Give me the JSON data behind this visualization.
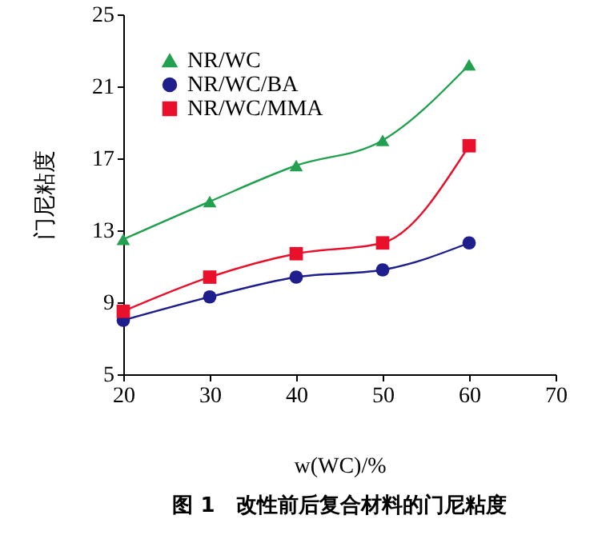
{
  "chart_data": {
    "type": "line",
    "title": "图 1　改性前后复合材料的门尼粘度",
    "xlabel": "w(WC)/%",
    "ylabel": "门尼粘度",
    "x": [
      20,
      30,
      40,
      50,
      60
    ],
    "xlim": [
      20,
      70
    ],
    "xticks": [
      20,
      30,
      40,
      50,
      60,
      70
    ],
    "ylim": [
      5,
      25
    ],
    "yticks": [
      5,
      9,
      13,
      17,
      21,
      25
    ],
    "grid": false,
    "legend": "top left",
    "series": [
      {
        "name": "NR/WC",
        "color": "#22a050",
        "marker": "triangle",
        "values": [
          12.5,
          14.6,
          16.6,
          18.0,
          22.2
        ]
      },
      {
        "name": "NR/WC/BA",
        "color": "#1e1e8c",
        "marker": "circle",
        "values": [
          8.0,
          9.3,
          10.4,
          10.8,
          12.3
        ]
      },
      {
        "name": "NR/WC/MMA",
        "color": "#e8102a",
        "marker": "square",
        "values": [
          8.5,
          10.4,
          11.7,
          12.3,
          17.7
        ]
      }
    ]
  }
}
